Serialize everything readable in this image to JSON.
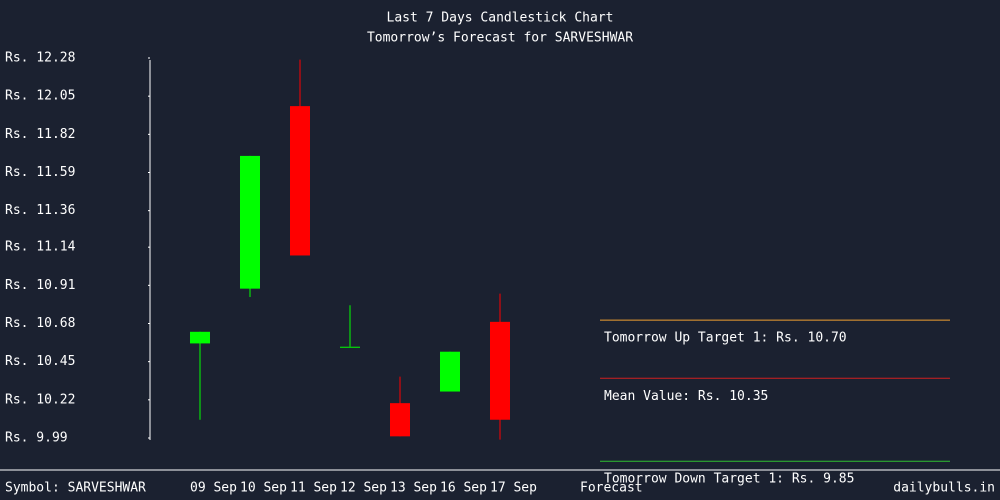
{
  "chart_data": {
    "type": "candlestick",
    "title": "Last 7 Days Candlestick Chart",
    "subtitle": "Tomorrow’s Forecast for SARVESHWAR",
    "symbol": "Symbol: SARVESHWAR",
    "site": "dailybulls.in",
    "forecast_category": "Forecast",
    "categories": [
      "09 Sep",
      "10 Sep",
      "11 Sep",
      "12 Sep",
      "13 Sep",
      "16 Sep",
      "17 Sep"
    ],
    "open": [
      10.56,
      10.89,
      11.99,
      10.54,
      10.2,
      10.27,
      10.69
    ],
    "high": [
      10.63,
      11.69,
      12.27,
      10.79,
      10.36,
      10.51,
      10.86
    ],
    "low": [
      10.1,
      10.84,
      11.09,
      10.54,
      10.0,
      10.27,
      9.98
    ],
    "close": [
      10.63,
      11.69,
      11.09,
      10.54,
      10.0,
      10.51,
      10.1
    ],
    "up_color": "#00ff00",
    "down_color": "#ff0000",
    "ylim": [
      9.99,
      12.28
    ],
    "yticks": [
      {
        "value": 12.28,
        "label": "Rs. 12.28"
      },
      {
        "value": 12.05,
        "label": "Rs. 12.05"
      },
      {
        "value": 11.82,
        "label": "Rs. 11.82"
      },
      {
        "value": 11.59,
        "label": "Rs. 11.59"
      },
      {
        "value": 11.36,
        "label": "Rs. 11.36"
      },
      {
        "value": 11.14,
        "label": "Rs. 11.14"
      },
      {
        "value": 10.91,
        "label": "Rs. 10.91"
      },
      {
        "value": 10.68,
        "label": "Rs. 10.68"
      },
      {
        "value": 10.45,
        "label": "Rs. 10.45"
      },
      {
        "value": 10.22,
        "label": "Rs. 10.22"
      },
      {
        "value": 9.99,
        "label": "Rs. 9.99"
      }
    ],
    "forecast": [
      {
        "label": "Tomorrow Up Target 1: Rs. 10.70",
        "value": 10.7,
        "color": "#f0a030"
      },
      {
        "label": "Mean Value: Rs. 10.35",
        "value": 10.35,
        "color": "#d02020"
      },
      {
        "label": "Tomorrow Down Target 1: Rs. 9.85",
        "value": 9.85,
        "color": "#30c030"
      }
    ]
  }
}
